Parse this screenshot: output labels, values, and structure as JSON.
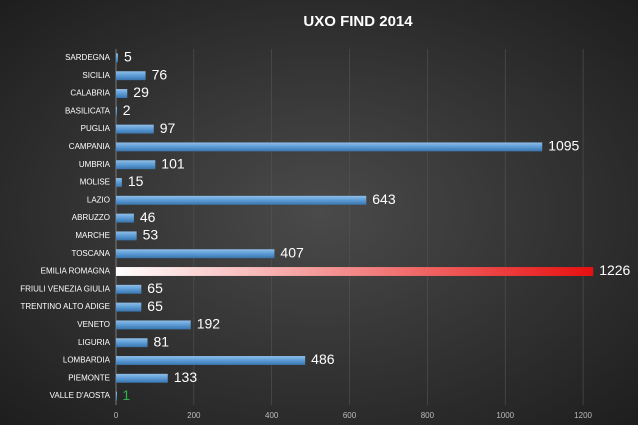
{
  "chart_data": {
    "type": "bar",
    "orientation": "horizontal",
    "title": "UXO FIND 2014",
    "categories": [
      "SARDEGNA",
      "SICILIA",
      "CALABRIA",
      "BASILICATA",
      "PUGLIA",
      "CAMPANIA",
      "UMBRIA",
      "MOLISE",
      "LAZIO",
      "ABRUZZO",
      "MARCHE",
      "TOSCANA",
      "EMILIA ROMAGNA",
      "FRIULI VENEZIA GIULIA",
      "TRENTINO ALTO ADIGE",
      "VENETO",
      "LIGURIA",
      "LOMBARDIA",
      "PIEMONTE",
      "VALLE D'AOSTA"
    ],
    "values": [
      5,
      76,
      29,
      2,
      97,
      1095,
      101,
      15,
      643,
      46,
      53,
      407,
      1226,
      65,
      65,
      192,
      81,
      486,
      133,
      1
    ],
    "colors": [
      "#5b9bd5",
      "#5b9bd5",
      "#5b9bd5",
      "#5b9bd5",
      "#5b9bd5",
      "#5b9bd5",
      "#5b9bd5",
      "#5b9bd5",
      "#5b9bd5",
      "#5b9bd5",
      "#5b9bd5",
      "#5b9bd5",
      "#e81010",
      "#5b9bd5",
      "#5b9bd5",
      "#5b9bd5",
      "#5b9bd5",
      "#5b9bd5",
      "#5b9bd5",
      "#5b9bd5"
    ],
    "value_label_colors": [
      "#ffffff",
      "#ffffff",
      "#ffffff",
      "#ffffff",
      "#ffffff",
      "#ffffff",
      "#ffffff",
      "#ffffff",
      "#ffffff",
      "#ffffff",
      "#ffffff",
      "#ffffff",
      "#ffffff",
      "#ffffff",
      "#ffffff",
      "#ffffff",
      "#ffffff",
      "#ffffff",
      "#ffffff",
      "#2db34a"
    ],
    "xlim": [
      0,
      1300
    ],
    "xticks": [
      0,
      200,
      400,
      600,
      800,
      1000,
      1200
    ],
    "grid": true
  }
}
